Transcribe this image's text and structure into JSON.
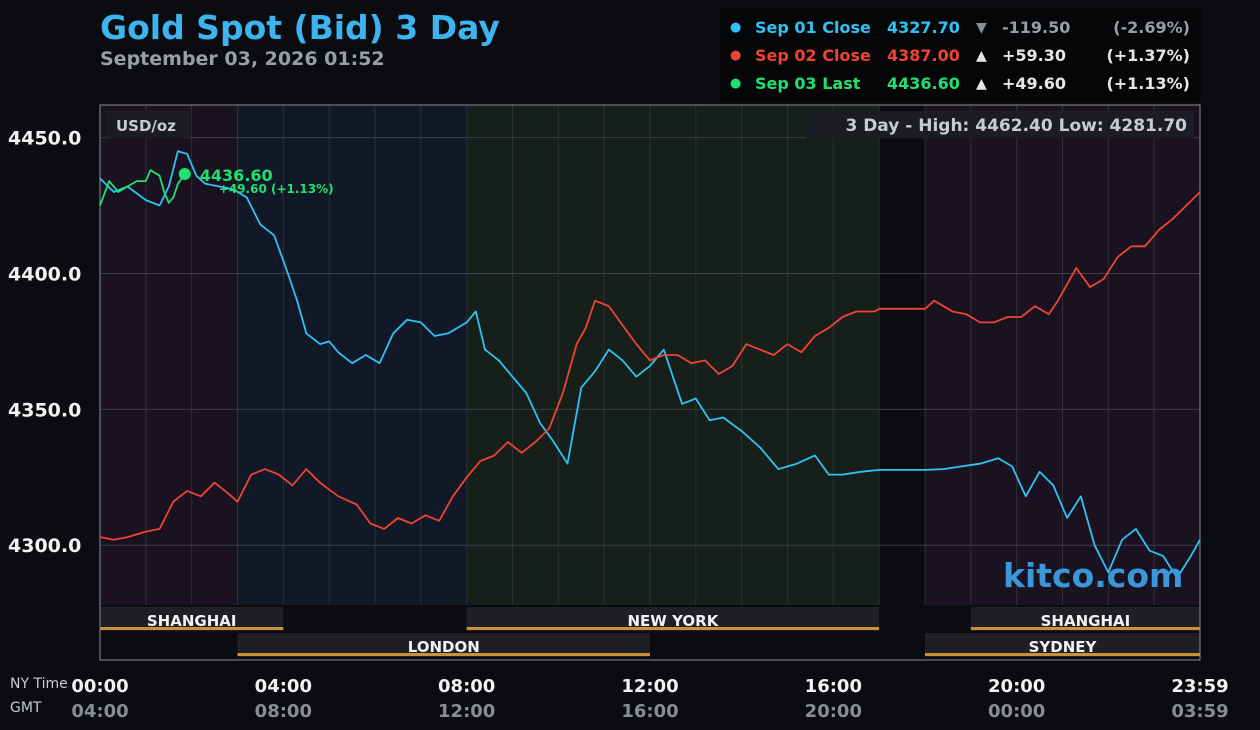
{
  "header": {
    "title": "Gold Spot (Bid) 3 Day",
    "subtitle": "September 03, 2026 01:52"
  },
  "legend": [
    {
      "label": "Sep 01 Close",
      "value": "4327.70",
      "arrow": "▼",
      "change": "-119.50",
      "pct": "(-2.69%)",
      "color": "#2fc3f5"
    },
    {
      "label": "Sep 02 Close",
      "value": "4387.00",
      "arrow": "▲",
      "change": "+59.30",
      "pct": "(+1.37%)",
      "color": "#ee4433"
    },
    {
      "label": "Sep 03 Last",
      "value": "4436.60",
      "arrow": "▲",
      "change": "+49.60",
      "pct": "(+1.13%)",
      "color": "#22e070"
    }
  ],
  "watermark": "kitco.com",
  "chart_data": {
    "type": "line",
    "unit_label": "USD/oz",
    "range_box": "3 Day - High: 4462.40  Low: 4281.70",
    "ylim": [
      4278,
      4462
    ],
    "y_ticks": [
      "4300.0",
      "4350.0",
      "4400.0",
      "4450.0"
    ],
    "x_range": [
      0,
      24
    ],
    "x_ticks_ny": [
      "00:00",
      "04:00",
      "08:00",
      "12:00",
      "16:00",
      "20:00",
      "23:59"
    ],
    "x_ticks_gmt": [
      "04:00",
      "08:00",
      "12:00",
      "16:00",
      "20:00",
      "00:00",
      "03:59"
    ],
    "row_labels": [
      "NY Time",
      "GMT"
    ],
    "grid": true,
    "sessions": [
      {
        "name": "SHANGHAI",
        "start": 0,
        "end": 4,
        "row": 1
      },
      {
        "name": "NEW YORK",
        "start": 8,
        "end": 17,
        "row": 1
      },
      {
        "name": "SHANGHAI",
        "start": 19,
        "end": 24,
        "row": 1
      },
      {
        "name": "LONDON",
        "start": 3,
        "end": 12,
        "row": 2
      },
      {
        "name": "SYDNEY",
        "start": 18,
        "end": 24,
        "row": 2
      }
    ],
    "last_point": {
      "x": 1.85,
      "y": 4436.6,
      "label": "4436.60",
      "sub": "+49.60 (+1.13%)"
    },
    "series": [
      {
        "name": "Sep 01 Close",
        "color": "#2fc3f5",
        "points": [
          [
            0,
            4435
          ],
          [
            0.3,
            4430
          ],
          [
            0.6,
            4432
          ],
          [
            1,
            4427
          ],
          [
            1.3,
            4425
          ],
          [
            1.5,
            4432
          ],
          [
            1.7,
            4445
          ],
          [
            1.9,
            4444
          ],
          [
            2.1,
            4436
          ],
          [
            2.3,
            4433
          ],
          [
            2.6,
            4432
          ],
          [
            2.9,
            4431
          ],
          [
            3.2,
            4428
          ],
          [
            3.5,
            4418
          ],
          [
            3.8,
            4414
          ],
          [
            4.1,
            4400
          ],
          [
            4.3,
            4390
          ],
          [
            4.5,
            4378
          ],
          [
            4.8,
            4374
          ],
          [
            5,
            4375
          ],
          [
            5.2,
            4371
          ],
          [
            5.5,
            4367
          ],
          [
            5.8,
            4370
          ],
          [
            6.1,
            4367
          ],
          [
            6.4,
            4378
          ],
          [
            6.7,
            4383
          ],
          [
            7,
            4382
          ],
          [
            7.3,
            4377
          ],
          [
            7.6,
            4378
          ],
          [
            8,
            4382
          ],
          [
            8.2,
            4386
          ],
          [
            8.4,
            4372
          ],
          [
            8.7,
            4368
          ],
          [
            9,
            4362
          ],
          [
            9.3,
            4356
          ],
          [
            9.6,
            4345
          ],
          [
            9.9,
            4338
          ],
          [
            10.2,
            4330
          ],
          [
            10.5,
            4358
          ],
          [
            10.8,
            4364
          ],
          [
            11.1,
            4372
          ],
          [
            11.4,
            4368
          ],
          [
            11.7,
            4362
          ],
          [
            12,
            4366
          ],
          [
            12.3,
            4372
          ],
          [
            12.5,
            4362
          ],
          [
            12.7,
            4352
          ],
          [
            13,
            4354
          ],
          [
            13.3,
            4346
          ],
          [
            13.6,
            4347
          ],
          [
            14,
            4342
          ],
          [
            14.4,
            4336
          ],
          [
            14.8,
            4328
          ],
          [
            15.2,
            4330
          ],
          [
            15.6,
            4333
          ],
          [
            15.9,
            4326
          ],
          [
            16.2,
            4326
          ],
          [
            16.6,
            4327
          ],
          [
            17,
            4327.7
          ],
          [
            18,
            4327.7
          ],
          [
            18.4,
            4328
          ],
          [
            18.8,
            4329
          ],
          [
            19.2,
            4330
          ],
          [
            19.6,
            4332
          ],
          [
            19.9,
            4329
          ],
          [
            20.2,
            4318
          ],
          [
            20.5,
            4327
          ],
          [
            20.8,
            4322
          ],
          [
            21.1,
            4310
          ],
          [
            21.4,
            4318
          ],
          [
            21.7,
            4300
          ],
          [
            22,
            4290
          ],
          [
            22.3,
            4302
          ],
          [
            22.6,
            4306
          ],
          [
            22.9,
            4298
          ],
          [
            23.2,
            4296
          ],
          [
            23.5,
            4288
          ],
          [
            23.8,
            4296
          ],
          [
            24,
            4302
          ]
        ]
      },
      {
        "name": "Sep 02 Close",
        "color": "#ee4433",
        "points": [
          [
            0,
            4303
          ],
          [
            0.3,
            4302
          ],
          [
            0.6,
            4303
          ],
          [
            1,
            4305
          ],
          [
            1.3,
            4306
          ],
          [
            1.6,
            4316
          ],
          [
            1.9,
            4320
          ],
          [
            2.2,
            4318
          ],
          [
            2.5,
            4323
          ],
          [
            2.8,
            4319
          ],
          [
            3,
            4316
          ],
          [
            3.3,
            4326
          ],
          [
            3.6,
            4328
          ],
          [
            3.9,
            4326
          ],
          [
            4.2,
            4322
          ],
          [
            4.5,
            4328
          ],
          [
            4.8,
            4323
          ],
          [
            5.2,
            4318
          ],
          [
            5.6,
            4315
          ],
          [
            5.9,
            4308
          ],
          [
            6.2,
            4306
          ],
          [
            6.5,
            4310
          ],
          [
            6.8,
            4308
          ],
          [
            7.1,
            4311
          ],
          [
            7.4,
            4309
          ],
          [
            7.7,
            4318
          ],
          [
            8,
            4325
          ],
          [
            8.3,
            4331
          ],
          [
            8.6,
            4333
          ],
          [
            8.9,
            4338
          ],
          [
            9.2,
            4334
          ],
          [
            9.5,
            4338
          ],
          [
            9.8,
            4343
          ],
          [
            10.1,
            4356
          ],
          [
            10.4,
            4374
          ],
          [
            10.6,
            4380
          ],
          [
            10.8,
            4390
          ],
          [
            11.1,
            4388
          ],
          [
            11.4,
            4381
          ],
          [
            11.7,
            4374
          ],
          [
            12,
            4368
          ],
          [
            12.3,
            4370
          ],
          [
            12.6,
            4370
          ],
          [
            12.9,
            4367
          ],
          [
            13.2,
            4368
          ],
          [
            13.5,
            4363
          ],
          [
            13.8,
            4366
          ],
          [
            14.1,
            4374
          ],
          [
            14.4,
            4372
          ],
          [
            14.7,
            4370
          ],
          [
            15,
            4374
          ],
          [
            15.3,
            4371
          ],
          [
            15.6,
            4377
          ],
          [
            15.9,
            4380
          ],
          [
            16.2,
            4384
          ],
          [
            16.5,
            4386
          ],
          [
            16.9,
            4386
          ],
          [
            17,
            4387
          ],
          [
            18,
            4387
          ],
          [
            18.2,
            4390
          ],
          [
            18.6,
            4386
          ],
          [
            18.9,
            4385
          ],
          [
            19.2,
            4382
          ],
          [
            19.5,
            4382
          ],
          [
            19.8,
            4384
          ],
          [
            20.1,
            4384
          ],
          [
            20.4,
            4388
          ],
          [
            20.7,
            4385
          ],
          [
            20.9,
            4390
          ],
          [
            21.1,
            4396
          ],
          [
            21.3,
            4402
          ],
          [
            21.6,
            4395
          ],
          [
            21.9,
            4398
          ],
          [
            22.2,
            4406
          ],
          [
            22.5,
            4410
          ],
          [
            22.8,
            4410
          ],
          [
            23.1,
            4416
          ],
          [
            23.4,
            4420
          ],
          [
            23.7,
            4425
          ],
          [
            24,
            4430
          ]
        ]
      },
      {
        "name": "Sep 03 Last",
        "color": "#22e070",
        "points": [
          [
            0,
            4425
          ],
          [
            0.2,
            4434
          ],
          [
            0.4,
            4430
          ],
          [
            0.6,
            4432
          ],
          [
            0.8,
            4434
          ],
          [
            1,
            4434
          ],
          [
            1.1,
            4438
          ],
          [
            1.3,
            4436
          ],
          [
            1.4,
            4430
          ],
          [
            1.5,
            4426
          ],
          [
            1.6,
            4428
          ],
          [
            1.7,
            4433
          ],
          [
            1.85,
            4436.6
          ]
        ]
      }
    ]
  }
}
